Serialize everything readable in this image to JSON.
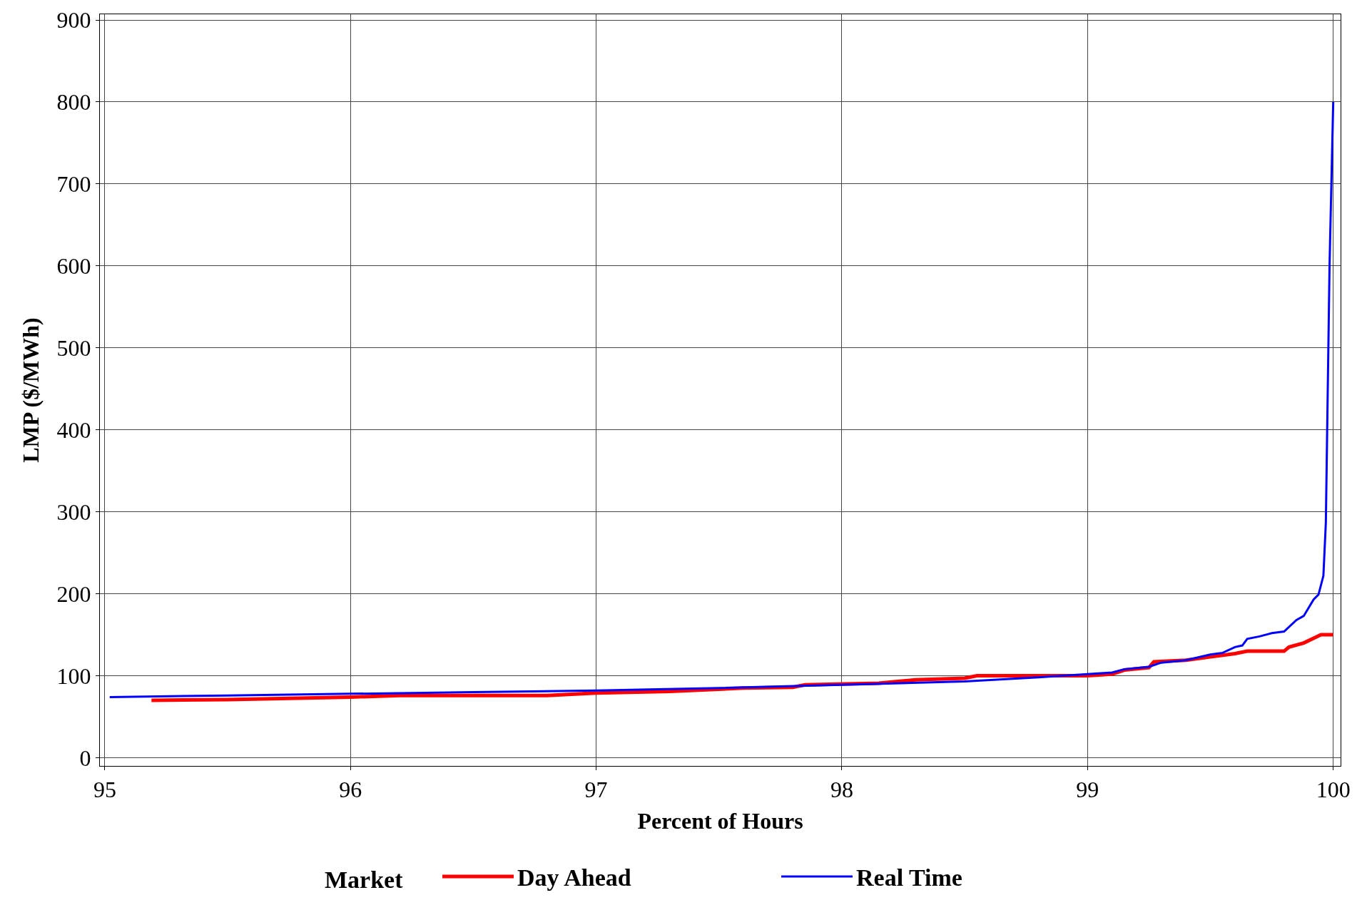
{
  "chart_data": {
    "type": "line",
    "xlabel": "Percent of Hours",
    "ylabel": "LMP ($/MWh)",
    "legend_title": "Market",
    "legend": "bottom",
    "grid": true,
    "line_style": "solid",
    "marker": "none",
    "xlim": [
      94.98,
      100.03
    ],
    "xticks": [
      95,
      96,
      97,
      98,
      99,
      100
    ],
    "ylim": [
      -10,
      907
    ],
    "yticks": [
      0,
      100,
      200,
      300,
      400,
      500,
      600,
      700,
      800,
      900
    ],
    "series": [
      {
        "name": "Day Ahead",
        "color": "#ff0000",
        "x": [
          95.19,
          95.5,
          96,
          96.2,
          96.8,
          97,
          97.3,
          97.6,
          97.8,
          97.85,
          98.15,
          98.3,
          98.5,
          98.55,
          99,
          99.1,
          99.15,
          99.25,
          99.27,
          99.4,
          99.5,
          99.6,
          99.65,
          99.8,
          99.82,
          99.88,
          99.95,
          100
        ],
        "values": [
          70,
          71,
          74,
          76,
          76,
          79,
          81,
          85,
          86,
          89,
          91,
          95,
          97,
          100,
          100,
          102,
          107,
          110,
          117,
          119,
          123,
          127,
          130,
          130,
          135,
          140,
          150,
          150
        ]
      },
      {
        "name": "Real Time",
        "color": "#0000ff",
        "x": [
          95.02,
          95.5,
          96,
          96.5,
          97,
          97.5,
          98,
          98.5,
          98.8,
          99,
          99.1,
          99.15,
          99.25,
          99.3,
          99.4,
          99.5,
          99.55,
          99.6,
          99.63,
          99.65,
          99.7,
          99.75,
          99.8,
          99.85,
          99.88,
          99.92,
          99.94,
          99.96,
          99.97,
          99.985,
          100
        ],
        "values": [
          74,
          76,
          78,
          80,
          82,
          85,
          89,
          93,
          98,
          102,
          104,
          108,
          111,
          116,
          119,
          126,
          128,
          135,
          137,
          145,
          148,
          152,
          154,
          168,
          173,
          193,
          199,
          222,
          287,
          600,
          800
        ]
      }
    ]
  }
}
